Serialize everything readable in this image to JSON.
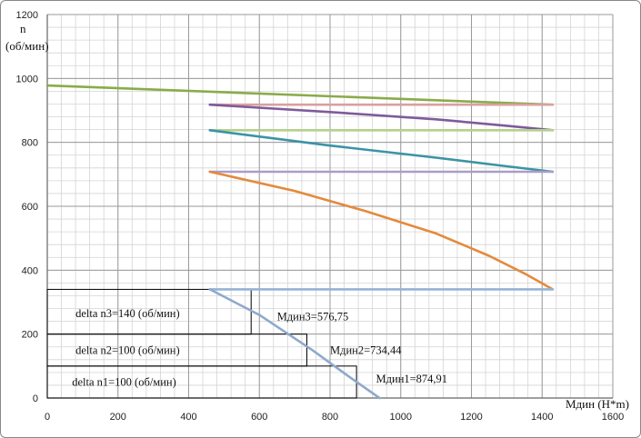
{
  "chart_data": {
    "type": "line",
    "xlabel": "Мдин (Н*m)",
    "ylabel_symbol": "n",
    "ylabel_unit": "(об/мин)",
    "xlim": [
      0,
      1600
    ],
    "ylim": [
      0,
      1200
    ],
    "xticks": [
      0,
      200,
      400,
      600,
      800,
      1000,
      1200,
      1400,
      1600
    ],
    "yticks": [
      0,
      200,
      400,
      600,
      800,
      1000,
      1200
    ],
    "minor_grid_x": 40,
    "minor_grid_y": 40,
    "grid": true,
    "series": [
      {
        "color": "#8aab4a",
        "x": [
          0,
          1430
        ],
        "y": [
          978,
          918
        ]
      },
      {
        "color": "#d9a0a0",
        "x": [
          460,
          1430
        ],
        "y": [
          918,
          918
        ]
      },
      {
        "color": "#7e5b9b",
        "x": [
          460,
          800,
          1100,
          1300,
          1430
        ],
        "y": [
          918,
          895,
          872,
          852,
          838
        ]
      },
      {
        "color": "#b3d18c",
        "x": [
          460,
          1430
        ],
        "y": [
          838,
          838
        ]
      },
      {
        "color": "#3b93a5",
        "x": [
          460,
          800,
          1100,
          1300,
          1430
        ],
        "y": [
          838,
          790,
          752,
          725,
          708
        ]
      },
      {
        "color": "#a99dc7",
        "x": [
          460,
          1430
        ],
        "y": [
          708,
          708
        ]
      },
      {
        "color": "#e48a3c",
        "x": [
          460,
          700,
          900,
          1100,
          1250,
          1350,
          1430
        ],
        "y": [
          708,
          648,
          585,
          515,
          445,
          390,
          340
        ]
      },
      {
        "color": "#95b3d7",
        "x": [
          460,
          1430
        ],
        "y": [
          340,
          340
        ]
      },
      {
        "color": "#8fa9cc",
        "x": [
          460,
          600,
          750,
          850,
          940
        ],
        "y": [
          340,
          260,
          150,
          70,
          0
        ]
      }
    ],
    "boxes": [
      {
        "x0": 0,
        "x1": 576.75,
        "y0": 200,
        "y1": 340
      },
      {
        "x0": 0,
        "x1": 734.44,
        "y0": 100,
        "y1": 200
      },
      {
        "x0": 0,
        "x1": 874.91,
        "y0": 0,
        "y1": 100
      }
    ],
    "annotations": [
      {
        "text": "delta n3=140 (об/мин)",
        "x": 80,
        "y": 265
      },
      {
        "text": "delta n2=100 (об/мин)",
        "x": 80,
        "y": 150
      },
      {
        "text": "delta n1=100 (об/мин)",
        "x": 70,
        "y": 50
      },
      {
        "text": "Мдин3=576,75",
        "x": 650,
        "y": 255
      },
      {
        "text": "Мдин2=734,44",
        "x": 800,
        "y": 150
      },
      {
        "text": "Мдин1=874,91",
        "x": 930,
        "y": 60
      }
    ]
  }
}
